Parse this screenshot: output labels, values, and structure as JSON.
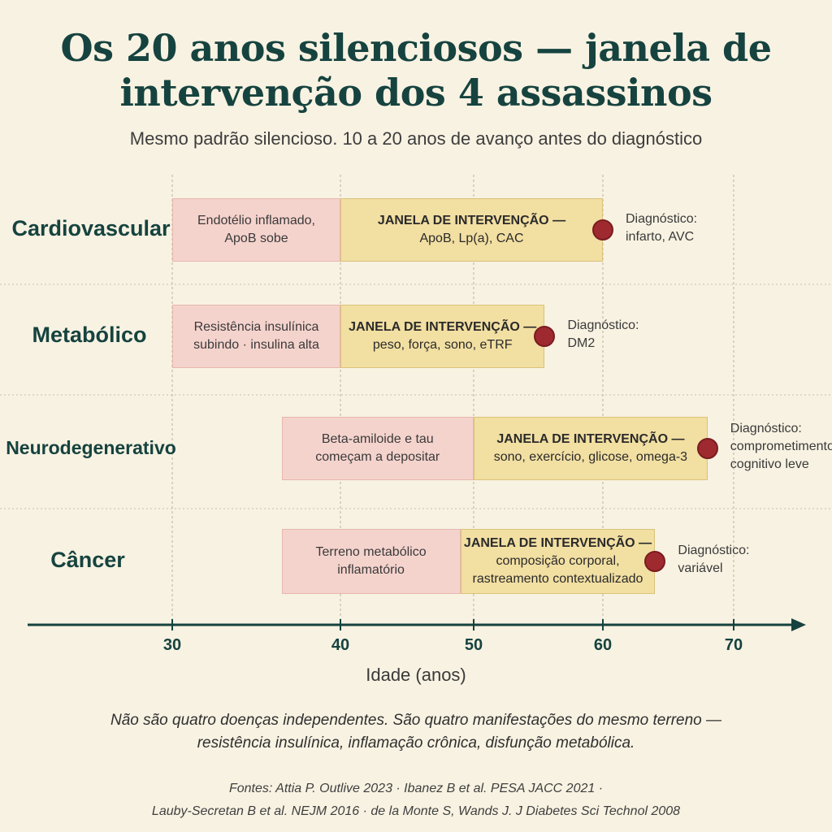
{
  "title": {
    "line1": "Os 20 anos silenciosos — janela de",
    "line2": "intervenção dos 4 assassinos"
  },
  "subtitle": "Mesmo padrão silencioso. 10 a 20 anos de avanço antes do diagnóstico",
  "axis": {
    "label": "Idade (anos)",
    "ticks": [
      "30",
      "40",
      "50",
      "60",
      "70"
    ]
  },
  "rows": [
    {
      "label": "Cardiovascular",
      "pre_start": 30,
      "pre_end": 40,
      "window_end": 60,
      "diagnosis_age": 60,
      "pre_text": [
        "Endotélio inflamado,",
        "ApoB sobe"
      ],
      "window_head": "JANELA DE INTERVENÇÃO —",
      "window_text": [
        "ApoB, Lp(a), CAC"
      ],
      "diagnosis": [
        "Diagnóstico:",
        "infarto, AVC"
      ]
    },
    {
      "label": "Metabólico",
      "pre_start": 30,
      "pre_end": 40,
      "window_end": 55.5,
      "diagnosis_age": 55.5,
      "pre_text": [
        "Resistência insulínica",
        "subindo · insulina alta"
      ],
      "window_head": "JANELA DE INTERVENÇÃO —",
      "window_text": [
        "peso, força, sono, eTRF"
      ],
      "diagnosis": [
        "Diagnóstico:",
        "DM2"
      ]
    },
    {
      "label": "Neurodegenerativo",
      "pre_start": 36.5,
      "pre_end": 50,
      "window_end": 68,
      "diagnosis_age": 68,
      "pre_text": [
        "Beta-amiloide e tau",
        "começam a depositar"
      ],
      "window_head": "JANELA DE INTERVENÇÃO —",
      "window_text": [
        "sono, exercício, glicose, omega-3"
      ],
      "diagnosis": [
        "Diagnóstico:",
        "comprometimento",
        "cognitivo leve"
      ]
    },
    {
      "label": "Câncer",
      "pre_start": 36.5,
      "pre_end": 49,
      "window_end": 64,
      "diagnosis_age": 64,
      "pre_text": [
        "Terreno metabólico",
        "inflamatório"
      ],
      "window_head": "JANELA DE INTERVENÇÃO —",
      "window_text": [
        "composição corporal,",
        "rastreamento contextualizado"
      ],
      "diagnosis": [
        "Diagnóstico:",
        "variável"
      ]
    }
  ],
  "note": {
    "line1": "Não são quatro doenças independentes. São quatro manifestações do mesmo terreno —",
    "line2": "resistência insulínica, inflamação crônica, disfunção metabólica."
  },
  "sources": {
    "line1": "Fontes: Attia P. Outlive 2023 · Ibanez B et al. PESA JACC 2021 ·",
    "line2": "Lauby-Secretan B et al. NEJM 2016 · de la Monte S, Wands J. J Diabetes Sci Technol 2008"
  },
  "colors": {
    "pre_phase": "#f5d3cd",
    "window": "#f2dfa2",
    "diagnosis_dot": "#9e2a2f",
    "title": "#16433f"
  }
}
